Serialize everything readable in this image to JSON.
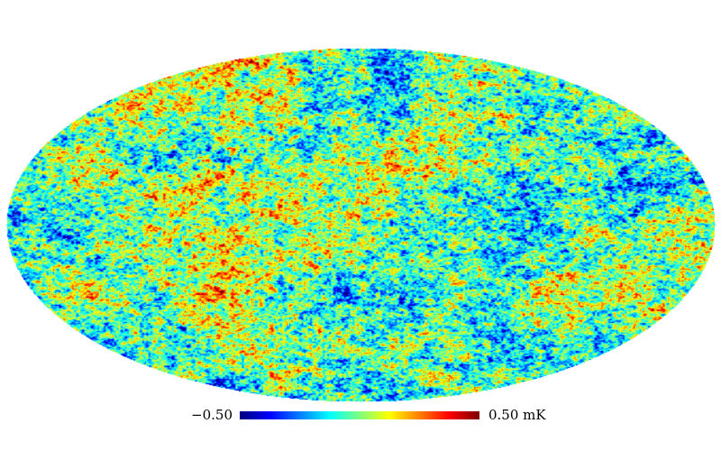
{
  "map": {
    "projection": "mollweide",
    "colormap": [
      "#00007f",
      "#0000ff",
      "#007fff",
      "#00ffff",
      "#7fff7f",
      "#ffff00",
      "#ff7f00",
      "#ff0000",
      "#7f0000"
    ],
    "background": "#ffffff"
  },
  "colorbar": {
    "min_label": "−0.50",
    "max_label": "0.50 mK"
  }
}
